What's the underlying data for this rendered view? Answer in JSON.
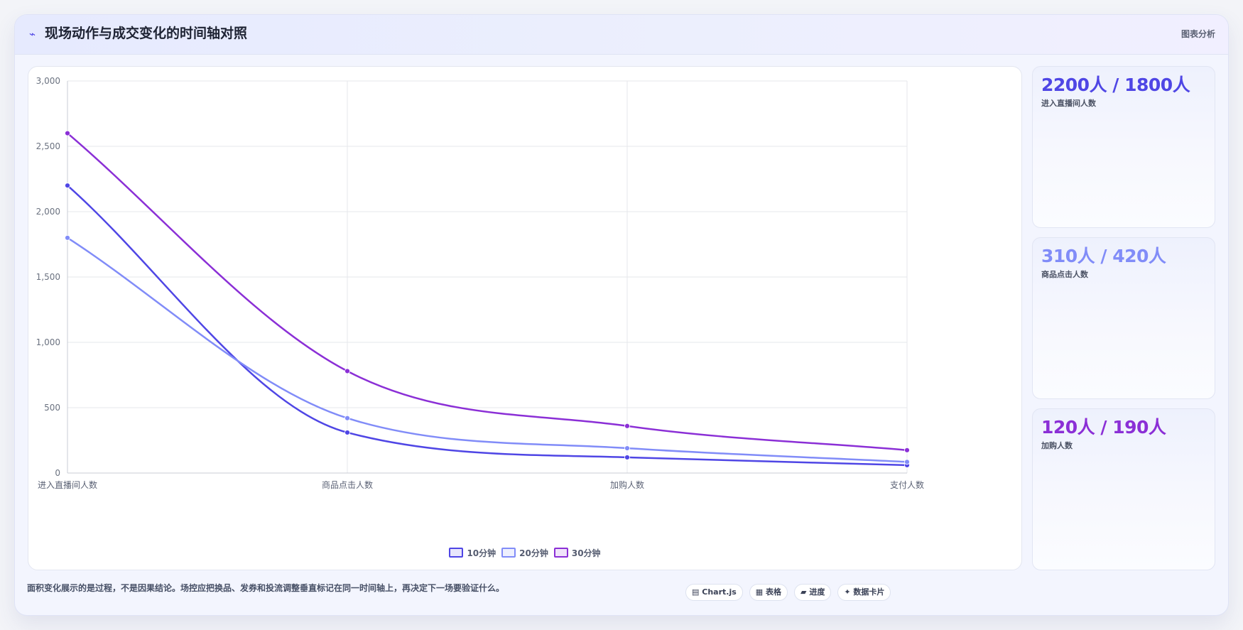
{
  "header": {
    "icon": "pulse-icon",
    "icon_glyph": "⌁",
    "title": "现场动作与成交变化的时间轴对照",
    "link_label": "图表分析"
  },
  "stats": [
    {
      "value": "2200人 / 1800人",
      "label": "进入直播间人数",
      "color": "#4f46e5"
    },
    {
      "value": "310人 / 420人",
      "label": "商品点击人数",
      "color": "#818cf8"
    },
    {
      "value": "120人 / 190人",
      "label": "加购人数",
      "color": "#8b2fd6"
    }
  ],
  "footer": {
    "note": "面积变化展示的是过程，不是因果结论。场控应把换品、发券和投流调整垂直标记在同一时间轴上，再决定下一场要验证什么。",
    "tags": [
      {
        "icon": "chart-icon",
        "glyph": "▤",
        "label": "Chart.js"
      },
      {
        "icon": "table-icon",
        "glyph": "▦",
        "label": "表格"
      },
      {
        "icon": "progress-icon",
        "glyph": "▰",
        "label": "进度"
      },
      {
        "icon": "data-card-icon",
        "glyph": "✦",
        "label": "数据卡片"
      }
    ]
  },
  "chart_data": {
    "type": "line",
    "title": "",
    "xlabel": "",
    "ylabel": "",
    "categories": [
      "进入直播间人数",
      "商品点击人数",
      "加购人数",
      "支付人数"
    ],
    "ylim": [
      0,
      3000
    ],
    "yticks": [
      0,
      500,
      1000,
      1500,
      2000,
      2500,
      3000
    ],
    "ytick_labels": [
      "0",
      "500",
      "1,000",
      "1,500",
      "2,000",
      "2,500",
      "3,000"
    ],
    "grid": true,
    "legend_position": "bottom",
    "series": [
      {
        "name": "10分钟",
        "values": [
          2200,
          310,
          120,
          60
        ],
        "color": "#4f46e5"
      },
      {
        "name": "20分钟",
        "values": [
          1800,
          420,
          190,
          85
        ],
        "color": "#818cf8"
      },
      {
        "name": "30分钟",
        "values": [
          2600,
          780,
          360,
          175
        ],
        "color": "#8b2fd6"
      }
    ]
  }
}
